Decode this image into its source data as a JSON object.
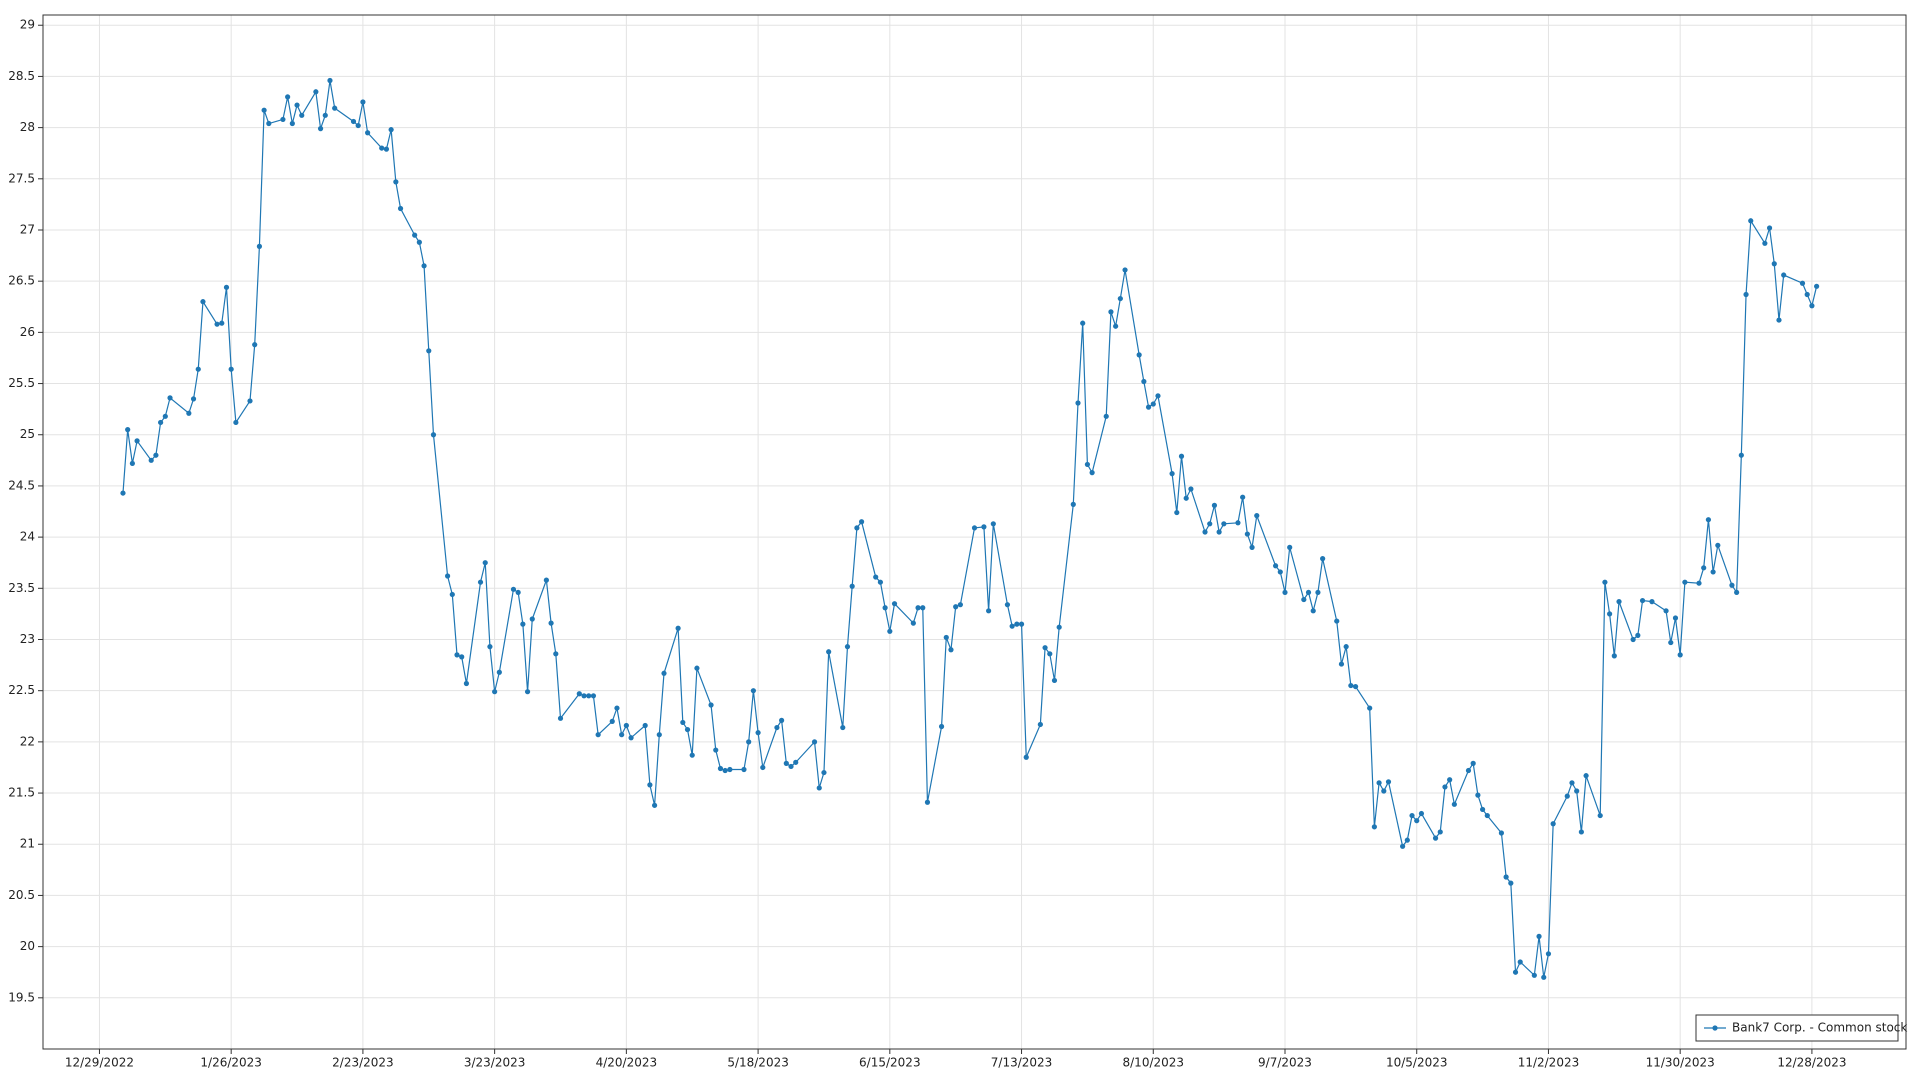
{
  "chart_data": {
    "type": "line",
    "series": [
      {
        "name": "Bank7 Corp. - Common stock",
        "color": "#1f77b4",
        "values": [
          24.43,
          25.05,
          24.72,
          24.94,
          24.75,
          24.8,
          25.12,
          25.18,
          25.36,
          25.21,
          25.35,
          25.64,
          26.3,
          26.08,
          26.09,
          26.44,
          25.64,
          25.12,
          25.33,
          25.88,
          26.84,
          28.17,
          28.04,
          28.08,
          28.3,
          28.04,
          28.22,
          28.12,
          28.35,
          27.99,
          28.12,
          28.46,
          28.19,
          28.06,
          28.02,
          28.25,
          27.95,
          27.8,
          27.79,
          27.98,
          27.47,
          27.21,
          26.95,
          26.88,
          26.65,
          25.82,
          25.0,
          23.62,
          23.44,
          22.85,
          22.83,
          22.57,
          23.56,
          23.75,
          22.93,
          22.49,
          22.68,
          23.49,
          23.46,
          23.15,
          22.49,
          23.2,
          23.58,
          23.16,
          22.86,
          22.23,
          22.47,
          22.45,
          22.45,
          22.45,
          22.07,
          22.2,
          22.33,
          22.07,
          22.16,
          22.04,
          22.16,
          21.58,
          21.38,
          22.07,
          22.67,
          23.11,
          22.19,
          22.12,
          21.87,
          22.72,
          22.36,
          21.92,
          21.74,
          21.72,
          21.73,
          21.73,
          22.0,
          22.5,
          22.09,
          21.75,
          22.14,
          22.21,
          21.79,
          21.76,
          21.8,
          22.0,
          21.55,
          21.7,
          22.88,
          22.14,
          22.93,
          23.52,
          24.09,
          24.15,
          23.61,
          23.56,
          23.31,
          23.08,
          23.35,
          23.16,
          23.31,
          23.31,
          21.41,
          22.15,
          23.02,
          22.9,
          23.32,
          23.34,
          24.09,
          24.1,
          23.28,
          24.13,
          23.34,
          23.13,
          23.15,
          23.15,
          21.85,
          22.17,
          22.92,
          22.86,
          22.6,
          23.12,
          24.32,
          25.31,
          26.09,
          24.71,
          24.63,
          25.18,
          26.2,
          26.06,
          26.33,
          26.61,
          25.78,
          25.52,
          25.27,
          25.3,
          25.38,
          24.62,
          24.24,
          24.79,
          24.38,
          24.47,
          24.05,
          24.13,
          24.31,
          24.05,
          24.13,
          24.14,
          24.39,
          24.03,
          23.9,
          24.21,
          23.72,
          23.66,
          23.46,
          23.9,
          23.39,
          23.46,
          23.28,
          23.46,
          23.79,
          23.18,
          22.76,
          22.93,
          22.55,
          22.54,
          22.33,
          21.17,
          21.6,
          21.52,
          21.61,
          20.98,
          21.04,
          21.28,
          21.23,
          21.3,
          21.06,
          21.12,
          21.56,
          21.63,
          21.39,
          21.72,
          21.79,
          21.48,
          21.34,
          21.28,
          21.11,
          20.68,
          20.62,
          19.75,
          19.85,
          19.72,
          20.1,
          19.7,
          19.93,
          21.2,
          21.47,
          21.6,
          21.52,
          21.12,
          21.67,
          21.28,
          23.56,
          23.25,
          22.84,
          23.37,
          23.0,
          23.04,
          23.38,
          23.37,
          23.28,
          22.97,
          23.21,
          22.85,
          23.56,
          23.55,
          23.7,
          24.17,
          23.66,
          23.92,
          23.53,
          23.46,
          24.8,
          26.37,
          27.09,
          26.87,
          27.02,
          26.67,
          26.12,
          26.56,
          26.48,
          26.37,
          26.26,
          26.45
        ]
      }
    ],
    "x": [
      "1/3/2023",
      "1/4/2023",
      "1/5/2023",
      "1/6/2023",
      "1/9/2023",
      "1/10/2023",
      "1/11/2023",
      "1/12/2023",
      "1/13/2023",
      "1/17/2023",
      "1/18/2023",
      "1/19/2023",
      "1/20/2023",
      "1/23/2023",
      "1/24/2023",
      "1/25/2023",
      "1/26/2023",
      "1/27/2023",
      "1/30/2023",
      "1/31/2023",
      "2/1/2023",
      "2/2/2023",
      "2/3/2023",
      "2/6/2023",
      "2/7/2023",
      "2/8/2023",
      "2/9/2023",
      "2/10/2023",
      "2/13/2023",
      "2/14/2023",
      "2/15/2023",
      "2/16/2023",
      "2/17/2023",
      "2/21/2023",
      "2/22/2023",
      "2/23/2023",
      "2/24/2023",
      "2/27/2023",
      "2/28/2023",
      "3/1/2023",
      "3/2/2023",
      "3/3/2023",
      "3/6/2023",
      "3/7/2023",
      "3/8/2023",
      "3/9/2023",
      "3/10/2023",
      "3/13/2023",
      "3/14/2023",
      "3/15/2023",
      "3/16/2023",
      "3/17/2023",
      "3/20/2023",
      "3/21/2023",
      "3/22/2023",
      "3/23/2023",
      "3/24/2023",
      "3/27/2023",
      "3/28/2023",
      "3/29/2023",
      "3/30/2023",
      "3/31/2023",
      "4/3/2023",
      "4/4/2023",
      "4/5/2023",
      "4/6/2023",
      "4/10/2023",
      "4/11/2023",
      "4/12/2023",
      "4/13/2023",
      "4/14/2023",
      "4/17/2023",
      "4/18/2023",
      "4/19/2023",
      "4/20/2023",
      "4/21/2023",
      "4/24/2023",
      "4/25/2023",
      "4/26/2023",
      "4/27/2023",
      "4/28/2023",
      "5/1/2023",
      "5/2/2023",
      "5/3/2023",
      "5/4/2023",
      "5/5/2023",
      "5/8/2023",
      "5/9/2023",
      "5/10/2023",
      "5/11/2023",
      "5/12/2023",
      "5/15/2023",
      "5/16/2023",
      "5/17/2023",
      "5/18/2023",
      "5/19/2023",
      "5/22/2023",
      "5/23/2023",
      "5/24/2023",
      "5/25/2023",
      "5/26/2023",
      "5/30/2023",
      "5/31/2023",
      "6/1/2023",
      "6/2/2023",
      "6/5/2023",
      "6/6/2023",
      "6/7/2023",
      "6/8/2023",
      "6/9/2023",
      "6/12/2023",
      "6/13/2023",
      "6/14/2023",
      "6/15/2023",
      "6/16/2023",
      "6/20/2023",
      "6/21/2023",
      "6/22/2023",
      "6/23/2023",
      "6/26/2023",
      "6/27/2023",
      "6/28/2023",
      "6/29/2023",
      "6/30/2023",
      "7/3/2023",
      "7/5/2023",
      "7/6/2023",
      "7/7/2023",
      "7/10/2023",
      "7/11/2023",
      "7/12/2023",
      "7/13/2023",
      "7/14/2023",
      "7/17/2023",
      "7/18/2023",
      "7/19/2023",
      "7/20/2023",
      "7/21/2023",
      "7/24/2023",
      "7/25/2023",
      "7/26/2023",
      "7/27/2023",
      "7/28/2023",
      "7/31/2023",
      "8/1/2023",
      "8/2/2023",
      "8/3/2023",
      "8/4/2023",
      "8/7/2023",
      "8/8/2023",
      "8/9/2023",
      "8/10/2023",
      "8/11/2023",
      "8/14/2023",
      "8/15/2023",
      "8/16/2023",
      "8/17/2023",
      "8/18/2023",
      "8/21/2023",
      "8/22/2023",
      "8/23/2023",
      "8/24/2023",
      "8/25/2023",
      "8/28/2023",
      "8/29/2023",
      "8/30/2023",
      "8/31/2023",
      "9/1/2023",
      "9/5/2023",
      "9/6/2023",
      "9/7/2023",
      "9/8/2023",
      "9/11/2023",
      "9/12/2023",
      "9/13/2023",
      "9/14/2023",
      "9/15/2023",
      "9/18/2023",
      "9/19/2023",
      "9/20/2023",
      "9/21/2023",
      "9/22/2023",
      "9/25/2023",
      "9/26/2023",
      "9/27/2023",
      "9/28/2023",
      "9/29/2023",
      "10/2/2023",
      "10/3/2023",
      "10/4/2023",
      "10/5/2023",
      "10/6/2023",
      "10/9/2023",
      "10/10/2023",
      "10/11/2023",
      "10/12/2023",
      "10/13/2023",
      "10/16/2023",
      "10/17/2023",
      "10/18/2023",
      "10/19/2023",
      "10/20/2023",
      "10/23/2023",
      "10/24/2023",
      "10/25/2023",
      "10/26/2023",
      "10/27/2023",
      "10/30/2023",
      "10/31/2023",
      "11/1/2023",
      "11/2/2023",
      "11/3/2023",
      "11/6/2023",
      "11/7/2023",
      "11/8/2023",
      "11/9/2023",
      "11/10/2023",
      "11/13/2023",
      "11/14/2023",
      "11/15/2023",
      "11/16/2023",
      "11/17/2023",
      "11/20/2023",
      "11/21/2023",
      "11/22/2023",
      "11/24/2023",
      "11/27/2023",
      "11/28/2023",
      "11/29/2023",
      "11/30/2023",
      "12/1/2023",
      "12/4/2023",
      "12/5/2023",
      "12/6/2023",
      "12/7/2023",
      "12/8/2023",
      "12/11/2023",
      "12/12/2023",
      "12/13/2023",
      "12/14/2023",
      "12/15/2023",
      "12/18/2023",
      "12/19/2023",
      "12/20/2023",
      "12/21/2023",
      "12/22/2023",
      "12/26/2023",
      "12/27/2023",
      "12/28/2023",
      "12/29/2023"
    ],
    "xlim": [
      "12/17/2022",
      "1/17/2024"
    ],
    "xticks": [
      "12/29/2022",
      "1/26/2023",
      "2/23/2023",
      "3/23/2023",
      "4/20/2023",
      "5/18/2023",
      "6/15/2023",
      "7/13/2023",
      "8/10/2023",
      "9/7/2023",
      "10/5/2023",
      "11/2/2023",
      "11/30/2023",
      "12/28/2023"
    ],
    "ylim": [
      19,
      29.1
    ],
    "yticks": [
      19.5,
      20,
      20.5,
      21,
      21.5,
      22,
      22.5,
      23,
      23.5,
      24,
      24.5,
      25,
      25.5,
      26,
      26.5,
      27,
      27.5,
      28,
      28.5,
      29
    ],
    "grid": true,
    "legend": "lower right"
  }
}
